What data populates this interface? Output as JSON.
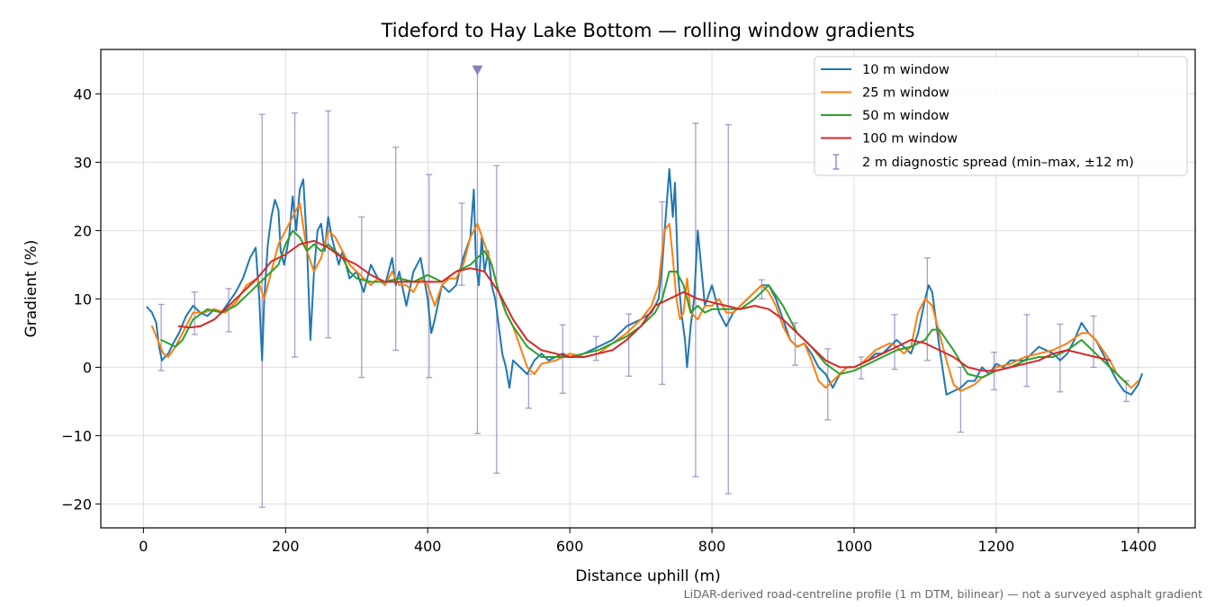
{
  "chart_data": {
    "type": "line",
    "title": "Tideford to Hay Lake Bottom — rolling window gradients",
    "xlabel": "Distance uphill (m)",
    "ylabel": "Gradient (%)",
    "footnote": "LiDAR-derived road-centreline profile (1 m DTM, bilinear) — not a surveyed asphalt gradient",
    "xlim": [
      -60,
      1480
    ],
    "ylim": [
      -23.5,
      46.5
    ],
    "xticks": [
      0,
      200,
      400,
      600,
      800,
      1000,
      1200,
      1400
    ],
    "xtick_labels": [
      "0",
      "200",
      "400",
      "600",
      "800",
      "1000",
      "1200",
      "1400"
    ],
    "yticks": [
      -20,
      -10,
      0,
      10,
      20,
      30,
      40
    ],
    "ytick_labels": [
      "−20",
      "−10",
      "0",
      "10",
      "20",
      "30",
      "40"
    ],
    "grid": true,
    "legend_position": "top-right",
    "series": [
      {
        "name": "10 m window",
        "color": "#1f77b4",
        "x": [
          5,
          12,
          18,
          22,
          26,
          30,
          35,
          42,
          50,
          60,
          70,
          80,
          90,
          100,
          110,
          120,
          130,
          140,
          150,
          158,
          163,
          167,
          170,
          175,
          180,
          185,
          190,
          193,
          198,
          205,
          210,
          215,
          220,
          225,
          230,
          235,
          240,
          245,
          250,
          255,
          260,
          265,
          270,
          275,
          280,
          290,
          300,
          310,
          320,
          330,
          340,
          350,
          355,
          360,
          370,
          380,
          390,
          400,
          405,
          410,
          420,
          430,
          440,
          450,
          460,
          465,
          468,
          472,
          476,
          480,
          485,
          490,
          495,
          500,
          505,
          510,
          515,
          520,
          530,
          540,
          550,
          560,
          570,
          580,
          590,
          600,
          620,
          640,
          660,
          680,
          700,
          715,
          725,
          730,
          735,
          740,
          745,
          748,
          752,
          757,
          762,
          765,
          770,
          775,
          780,
          790,
          800,
          810,
          820,
          830,
          840,
          850,
          860,
          870,
          880,
          890,
          900,
          910,
          920,
          930,
          940,
          950,
          960,
          970,
          980,
          990,
          1000,
          1010,
          1020,
          1030,
          1040,
          1050,
          1060,
          1070,
          1080,
          1090,
          1100,
          1105,
          1110,
          1115,
          1120,
          1130,
          1140,
          1150,
          1160,
          1170,
          1180,
          1190,
          1200,
          1210,
          1220,
          1240,
          1250,
          1260,
          1270,
          1280,
          1290,
          1300,
          1310,
          1320,
          1330,
          1340,
          1350,
          1360,
          1370,
          1380,
          1390,
          1400,
          1405
        ],
        "y": [
          8.8,
          8,
          6.5,
          3,
          1,
          1.5,
          2,
          3.5,
          5,
          7.5,
          9,
          8,
          7.5,
          8.5,
          8,
          9.5,
          11,
          13,
          16,
          17.5,
          10,
          1,
          10,
          18,
          22,
          24.5,
          23,
          17,
          15,
          19,
          25,
          20,
          26,
          27.5,
          18,
          4,
          14,
          20,
          21,
          17,
          22,
          19,
          17,
          15,
          17,
          13,
          14,
          11,
          15,
          13,
          12,
          16,
          12,
          14,
          9,
          14,
          16,
          10,
          5,
          7,
          12,
          11,
          12,
          16,
          19,
          26,
          15,
          12,
          19,
          14,
          17,
          12,
          10,
          6,
          2,
          0,
          -3,
          1,
          0,
          -1,
          1,
          2,
          1,
          1.5,
          2,
          1.5,
          2,
          3,
          4,
          6,
          7,
          8,
          10,
          15,
          22,
          29,
          22,
          27,
          14,
          8,
          4,
          0,
          6,
          10,
          20,
          9,
          12,
          8,
          6,
          8,
          9,
          10,
          11,
          12,
          12,
          10,
          7,
          4,
          3,
          3.5,
          2,
          0,
          -1,
          -3,
          -1,
          0,
          0,
          0.5,
          1,
          2,
          2,
          3,
          4,
          3,
          2,
          5,
          10,
          12,
          11,
          7,
          3,
          -4,
          -3.5,
          -3,
          -2,
          -2,
          0,
          -1,
          0.5,
          0,
          1,
          1,
          2,
          3,
          2.5,
          2,
          1,
          2,
          4,
          6.5,
          5,
          4,
          2,
          0,
          -2,
          -3.5,
          -4,
          -2.5,
          -1
        ]
      },
      {
        "name": "25 m window",
        "color": "#ff7f0e",
        "x": [
          12,
          20,
          28,
          35,
          45,
          55,
          70,
          85,
          100,
          115,
          130,
          145,
          160,
          170,
          180,
          190,
          200,
          210,
          220,
          230,
          240,
          250,
          260,
          270,
          280,
          290,
          300,
          310,
          320,
          330,
          340,
          350,
          360,
          370,
          380,
          390,
          400,
          410,
          420,
          430,
          440,
          450,
          460,
          470,
          480,
          490,
          500,
          510,
          520,
          530,
          540,
          550,
          560,
          580,
          600,
          620,
          640,
          660,
          680,
          700,
          715,
          725,
          733,
          740,
          745,
          750,
          755,
          760,
          765,
          770,
          780,
          790,
          800,
          810,
          820,
          830,
          840,
          850,
          860,
          870,
          880,
          890,
          900,
          910,
          920,
          930,
          940,
          950,
          960,
          970,
          980,
          990,
          1000,
          1010,
          1020,
          1030,
          1040,
          1050,
          1060,
          1070,
          1080,
          1090,
          1100,
          1110,
          1120,
          1130,
          1140,
          1150,
          1160,
          1170,
          1180,
          1190,
          1200,
          1220,
          1240,
          1260,
          1280,
          1300,
          1320,
          1330,
          1340,
          1350,
          1360,
          1370,
          1380,
          1390,
          1400
        ],
        "y": [
          6,
          4,
          2,
          1.5,
          3,
          5,
          8,
          8,
          8.5,
          8,
          9.5,
          12,
          13,
          10,
          14,
          18,
          20,
          22,
          24,
          17,
          14,
          16,
          20,
          19,
          17,
          15,
          14,
          13,
          12,
          13,
          12,
          14,
          12,
          12,
          11,
          13,
          12,
          9,
          12,
          13,
          13,
          15,
          19,
          21,
          18,
          15,
          11,
          8,
          6,
          3,
          0,
          -1,
          0.5,
          1,
          2,
          1.5,
          2,
          3.5,
          5,
          7,
          9,
          12,
          20,
          21,
          16,
          10,
          7,
          8,
          13,
          8,
          7,
          9,
          9,
          10,
          8,
          8,
          9,
          10,
          11,
          12,
          11,
          9,
          6,
          4,
          3,
          3.5,
          1,
          -2,
          -3,
          -2,
          -1,
          0,
          0,
          0.5,
          1.5,
          2.5,
          3,
          3.5,
          3,
          2,
          3,
          8,
          10,
          9,
          5,
          1,
          -2.5,
          -3.5,
          -3,
          -2.5,
          -1.5,
          -1,
          0,
          0.5,
          1.5,
          2,
          2.5,
          3.5,
          5,
          5,
          4,
          2.5,
          1,
          -1,
          -2,
          -3,
          -2
        ]
      },
      {
        "name": "50 m window",
        "color": "#2ca02c",
        "x": [
          25,
          35,
          45,
          55,
          70,
          90,
          110,
          130,
          150,
          170,
          190,
          200,
          210,
          220,
          230,
          240,
          250,
          260,
          270,
          280,
          290,
          300,
          320,
          340,
          360,
          380,
          400,
          420,
          440,
          460,
          470,
          480,
          490,
          500,
          510,
          520,
          540,
          560,
          580,
          600,
          620,
          640,
          660,
          680,
          700,
          720,
          730,
          740,
          750,
          760,
          770,
          780,
          790,
          800,
          820,
          840,
          860,
          870,
          880,
          900,
          920,
          940,
          960,
          980,
          1000,
          1020,
          1040,
          1060,
          1080,
          1100,
          1110,
          1120,
          1140,
          1160,
          1180,
          1200,
          1220,
          1240,
          1260,
          1280,
          1300,
          1320,
          1340,
          1360,
          1380,
          1385
        ],
        "y": [
          4,
          3.5,
          3,
          4,
          7,
          8.5,
          8,
          9,
          11,
          13,
          15,
          18,
          20,
          19,
          17,
          18,
          17,
          18,
          17,
          16,
          14,
          13,
          12.5,
          12.5,
          13,
          12.5,
          13.5,
          12.5,
          14,
          15,
          16,
          17,
          15,
          11,
          8,
          6,
          3,
          1.5,
          1.5,
          1.5,
          2,
          2.5,
          3.5,
          4.5,
          6,
          8,
          10,
          14,
          14,
          12,
          8,
          9,
          8,
          8.5,
          8.5,
          8.5,
          10,
          11,
          12,
          9,
          5,
          3,
          0.5,
          -1,
          -0.5,
          0.5,
          1.5,
          2.5,
          3,
          4,
          5.5,
          5.5,
          2.5,
          -1,
          -1.5,
          -0.5,
          0,
          1,
          1.5,
          1.5,
          2.5,
          4,
          2,
          0,
          -2,
          -2.5
        ]
      },
      {
        "name": "100 m window",
        "color": "#d62728",
        "x": [
          50,
          65,
          80,
          100,
          120,
          140,
          160,
          180,
          200,
          220,
          240,
          260,
          280,
          300,
          320,
          340,
          360,
          380,
          400,
          420,
          440,
          460,
          480,
          500,
          520,
          540,
          560,
          580,
          600,
          620,
          640,
          660,
          680,
          700,
          720,
          740,
          760,
          780,
          800,
          820,
          840,
          860,
          880,
          900,
          920,
          940,
          960,
          980,
          1000,
          1020,
          1040,
          1060,
          1080,
          1100,
          1120,
          1140,
          1160,
          1180,
          1200,
          1220,
          1240,
          1260,
          1280,
          1300,
          1320,
          1340,
          1360
        ],
        "y": [
          6,
          5.8,
          6,
          7,
          9,
          11,
          13,
          15.5,
          16.5,
          18,
          18.5,
          17.5,
          16,
          15,
          13.5,
          12.5,
          12.5,
          12.5,
          12.5,
          12.5,
          14,
          14.5,
          14,
          11,
          7,
          4,
          2.5,
          2,
          1.5,
          1.5,
          2,
          2.5,
          4,
          6,
          9,
          10,
          11,
          10,
          9.5,
          9,
          8.5,
          9,
          8.5,
          7,
          5,
          3,
          1,
          0,
          0,
          1,
          2,
          3,
          4,
          3.5,
          2.5,
          1.5,
          0,
          -0.5,
          -0.5,
          0,
          0.5,
          1,
          2,
          2.5,
          2,
          1.5,
          1
        ]
      }
    ],
    "error_bars": {
      "name": "2 m diagnostic spread (min–max, ±12 m)",
      "color": "#8b7fb8",
      "bars": [
        {
          "x": 25,
          "lo": -0.5,
          "hi": 9.2
        },
        {
          "x": 72,
          "lo": 4.8,
          "hi": 11
        },
        {
          "x": 120,
          "lo": 5.2,
          "hi": 11.5
        },
        {
          "x": 167,
          "lo": -20.5,
          "hi": 37
        },
        {
          "x": 213,
          "lo": 1.5,
          "hi": 37.2
        },
        {
          "x": 260,
          "lo": 4.3,
          "hi": 37.5
        },
        {
          "x": 307,
          "lo": -1.5,
          "hi": 22
        },
        {
          "x": 355,
          "lo": 2.5,
          "hi": 32.2
        },
        {
          "x": 402,
          "lo": -1.5,
          "hi": 28.2
        },
        {
          "x": 448,
          "lo": 12,
          "hi": 24
        },
        {
          "x": 470,
          "lo": -9.7,
          "hi": 43.5
        },
        {
          "x": 497,
          "lo": -15.5,
          "hi": 29.5
        },
        {
          "x": 542,
          "lo": -6,
          "hi": -1
        },
        {
          "x": 590,
          "lo": -3.8,
          "hi": 6.2
        },
        {
          "x": 637,
          "lo": 1,
          "hi": 4.5
        },
        {
          "x": 683,
          "lo": -1.3,
          "hi": 7.8
        },
        {
          "x": 730,
          "lo": -2.5,
          "hi": 24.2
        },
        {
          "x": 777,
          "lo": -16,
          "hi": 35.7
        },
        {
          "x": 823,
          "lo": -18.5,
          "hi": 35.5
        },
        {
          "x": 870,
          "lo": 10,
          "hi": 12.8
        },
        {
          "x": 917,
          "lo": 0.3,
          "hi": 6.5
        },
        {
          "x": 963,
          "lo": -7.7,
          "hi": 2.7
        },
        {
          "x": 1010,
          "lo": -1.7,
          "hi": 1.5
        },
        {
          "x": 1057,
          "lo": -0.3,
          "hi": 7.7
        },
        {
          "x": 1103,
          "lo": 1,
          "hi": 16
        },
        {
          "x": 1150,
          "lo": -9.5,
          "hi": 0
        },
        {
          "x": 1197,
          "lo": -3.3,
          "hi": 2.2
        },
        {
          "x": 1243,
          "lo": -2.8,
          "hi": 7.7
        },
        {
          "x": 1290,
          "lo": -3.6,
          "hi": 6.3
        },
        {
          "x": 1337,
          "lo": 0,
          "hi": 7.5
        },
        {
          "x": 1383,
          "lo": -5,
          "hi": -2
        }
      ],
      "clipped_marker": {
        "x": 470,
        "y": 43.5
      }
    }
  }
}
